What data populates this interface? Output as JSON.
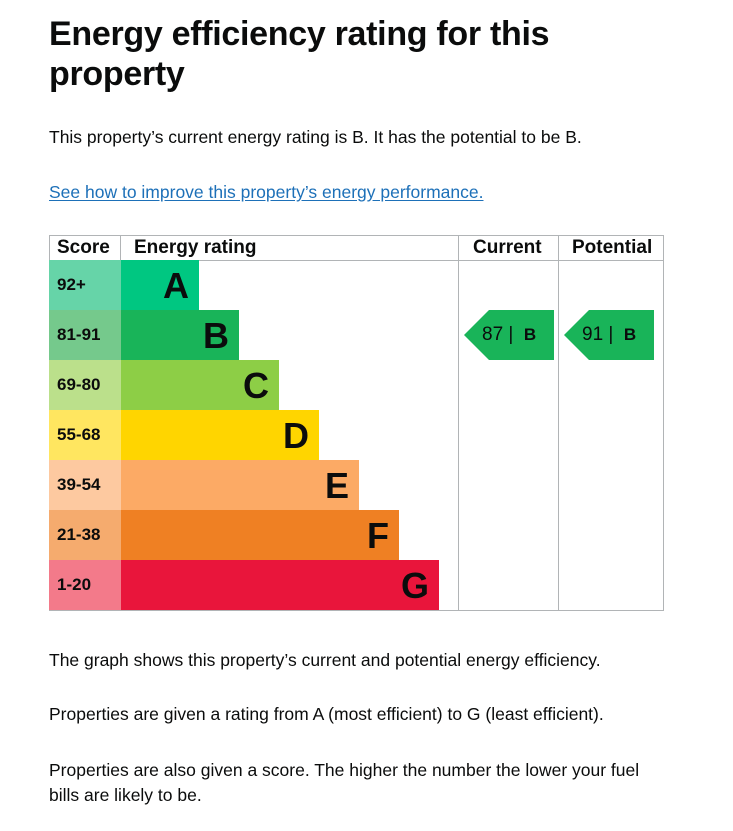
{
  "page": {
    "title": "Energy efficiency rating for this property",
    "intro": "This property’s current energy rating is B. It has the potential to be B.",
    "improve_link": "See how to improve this property’s energy performance.",
    "paragraphs": [
      "The graph shows this property’s current and potential energy efficiency.",
      "Properties are given a rating from A (most efficient) to G (least efficient).",
      "Properties are also given a score. The higher the number the lower your fuel bills are likely to be."
    ]
  },
  "chart_data": {
    "type": "table",
    "headers": {
      "score": "Score",
      "rating": "Energy rating",
      "current": "Current",
      "potential": "Potential"
    },
    "bands": [
      {
        "score": "92+",
        "letter": "A",
        "color": "#00c781",
        "score_bg": "#66dd b3"
      },
      {
        "score": "81-91",
        "letter": "B",
        "color": "#19b459",
        "score_bg": "#75d29b"
      },
      {
        "score": "69-80",
        "letter": "C",
        "color": "#8dce46",
        "score_bg": "#bbe290"
      },
      {
        "score": "55-68",
        "letter": "D",
        "color": "#ffd500",
        "score_bg": "#ffe666"
      },
      {
        "score": "39-54",
        "letter": "E",
        "color": "#fcaa65",
        "score_bg": "#fdcca3"
      },
      {
        "score": "21-38",
        "letter": "F",
        "color": "#ef8023",
        "score_bg": "#f5b37b"
      },
      {
        "score": "1-20",
        "letter": "G",
        "color": "#e9153b",
        "score_bg": "#f27389"
      }
    ],
    "current": {
      "value": 87,
      "separator": "|",
      "letter": "B",
      "band_index": 1,
      "color": "#19b459"
    },
    "potential": {
      "value": 91,
      "separator": "|",
      "letter": "B",
      "band_index": 1,
      "color": "#19b459"
    }
  }
}
